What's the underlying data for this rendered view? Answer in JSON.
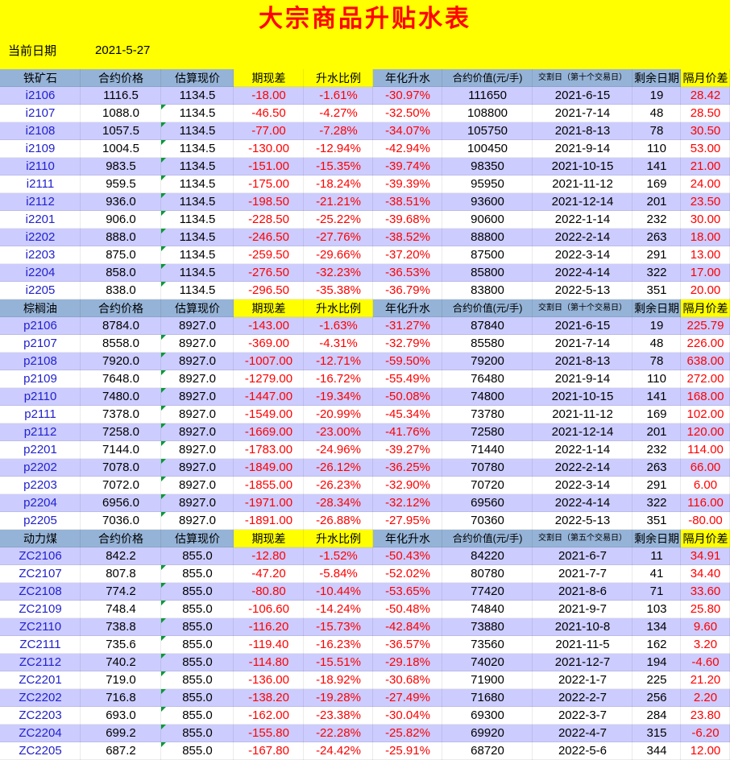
{
  "title": "大宗商品升贴水表",
  "date_label": "当前日期",
  "date_value": "2021-5-27",
  "colors": {
    "banner_bg": "#FFFF00",
    "title_red": "#FF0000",
    "header_blue": "#95B3D7",
    "header_yellow": "#FFFF00",
    "row_alt_bg": "#CCCCFF",
    "row_white_bg": "#FFFFFF",
    "contract_blue": "#2222CC",
    "negative_red": "#FF0000",
    "triangle_green": "#009933"
  },
  "table": {
    "column_keys": [
      "contract",
      "contract-price",
      "estimated-spot-price",
      "basis",
      "premium-ratio",
      "annualized-premium",
      "contract-value",
      "delivery-date",
      "days-remaining",
      "intermonth-spread"
    ],
    "sections": [
      {
        "name": "铁矿石",
        "headers": [
          "铁矿石",
          "合约价格",
          "估算现价",
          "期现差",
          "升水比例",
          "年化升水",
          "合约价值(元/手)",
          "交割日（第十个交易日）",
          "剩余日期",
          "隔月价差"
        ],
        "rows": [
          [
            "i2106",
            "1116.5",
            "1134.5",
            "-18.00",
            "-1.61%",
            "-30.97%",
            "111650",
            "2021-6-15",
            "19",
            "28.42"
          ],
          [
            "i2107",
            "1088.0",
            "1134.5",
            "-46.50",
            "-4.27%",
            "-32.50%",
            "108800",
            "2021-7-14",
            "48",
            "28.50"
          ],
          [
            "i2108",
            "1057.5",
            "1134.5",
            "-77.00",
            "-7.28%",
            "-34.07%",
            "105750",
            "2021-8-13",
            "78",
            "30.50"
          ],
          [
            "i2109",
            "1004.5",
            "1134.5",
            "-130.00",
            "-12.94%",
            "-42.94%",
            "100450",
            "2021-9-14",
            "110",
            "53.00"
          ],
          [
            "i2110",
            "983.5",
            "1134.5",
            "-151.00",
            "-15.35%",
            "-39.74%",
            "98350",
            "2021-10-15",
            "141",
            "21.00"
          ],
          [
            "i2111",
            "959.5",
            "1134.5",
            "-175.00",
            "-18.24%",
            "-39.39%",
            "95950",
            "2021-11-12",
            "169",
            "24.00"
          ],
          [
            "i2112",
            "936.0",
            "1134.5",
            "-198.50",
            "-21.21%",
            "-38.51%",
            "93600",
            "2021-12-14",
            "201",
            "23.50"
          ],
          [
            "i2201",
            "906.0",
            "1134.5",
            "-228.50",
            "-25.22%",
            "-39.68%",
            "90600",
            "2022-1-14",
            "232",
            "30.00"
          ],
          [
            "i2202",
            "888.0",
            "1134.5",
            "-246.50",
            "-27.76%",
            "-38.52%",
            "88800",
            "2022-2-14",
            "263",
            "18.00"
          ],
          [
            "i2203",
            "875.0",
            "1134.5",
            "-259.50",
            "-29.66%",
            "-37.20%",
            "87500",
            "2022-3-14",
            "291",
            "13.00"
          ],
          [
            "i2204",
            "858.0",
            "1134.5",
            "-276.50",
            "-32.23%",
            "-36.53%",
            "85800",
            "2022-4-14",
            "322",
            "17.00"
          ],
          [
            "i2205",
            "838.0",
            "1134.5",
            "-296.50",
            "-35.38%",
            "-36.79%",
            "83800",
            "2022-5-13",
            "351",
            "20.00"
          ]
        ]
      },
      {
        "name": "棕榈油",
        "headers": [
          "棕榈油",
          "合约价格",
          "估算现价",
          "期现差",
          "升水比例",
          "年化升水",
          "合约价值(元/手)",
          "交割日（第十个交易日）",
          "剩余日期",
          "隔月价差"
        ],
        "rows": [
          [
            "p2106",
            "8784.0",
            "8927.0",
            "-143.00",
            "-1.63%",
            "-31.27%",
            "87840",
            "2021-6-15",
            "19",
            "225.79"
          ],
          [
            "p2107",
            "8558.0",
            "8927.0",
            "-369.00",
            "-4.31%",
            "-32.79%",
            "85580",
            "2021-7-14",
            "48",
            "226.00"
          ],
          [
            "p2108",
            "7920.0",
            "8927.0",
            "-1007.00",
            "-12.71%",
            "-59.50%",
            "79200",
            "2021-8-13",
            "78",
            "638.00"
          ],
          [
            "p2109",
            "7648.0",
            "8927.0",
            "-1279.00",
            "-16.72%",
            "-55.49%",
            "76480",
            "2021-9-14",
            "110",
            "272.00"
          ],
          [
            "p2110",
            "7480.0",
            "8927.0",
            "-1447.00",
            "-19.34%",
            "-50.08%",
            "74800",
            "2021-10-15",
            "141",
            "168.00"
          ],
          [
            "p2111",
            "7378.0",
            "8927.0",
            "-1549.00",
            "-20.99%",
            "-45.34%",
            "73780",
            "2021-11-12",
            "169",
            "102.00"
          ],
          [
            "p2112",
            "7258.0",
            "8927.0",
            "-1669.00",
            "-23.00%",
            "-41.76%",
            "72580",
            "2021-12-14",
            "201",
            "120.00"
          ],
          [
            "p2201",
            "7144.0",
            "8927.0",
            "-1783.00",
            "-24.96%",
            "-39.27%",
            "71440",
            "2022-1-14",
            "232",
            "114.00"
          ],
          [
            "p2202",
            "7078.0",
            "8927.0",
            "-1849.00",
            "-26.12%",
            "-36.25%",
            "70780",
            "2022-2-14",
            "263",
            "66.00"
          ],
          [
            "p2203",
            "7072.0",
            "8927.0",
            "-1855.00",
            "-26.23%",
            "-32.90%",
            "70720",
            "2022-3-14",
            "291",
            "6.00"
          ],
          [
            "p2204",
            "6956.0",
            "8927.0",
            "-1971.00",
            "-28.34%",
            "-32.12%",
            "69560",
            "2022-4-14",
            "322",
            "116.00"
          ],
          [
            "p2205",
            "7036.0",
            "8927.0",
            "-1891.00",
            "-26.88%",
            "-27.95%",
            "70360",
            "2022-5-13",
            "351",
            "-80.00"
          ]
        ]
      },
      {
        "name": "动力煤",
        "headers": [
          "动力煤",
          "合约价格",
          "估算现价",
          "期现差",
          "升水比例",
          "年化升水",
          "合约价值(元/手)",
          "交割日（第五个交易日）",
          "剩余日期",
          "隔月价差"
        ],
        "rows": [
          [
            "ZC2106",
            "842.2",
            "855.0",
            "-12.80",
            "-1.52%",
            "-50.43%",
            "84220",
            "2021-6-7",
            "11",
            "34.91"
          ],
          [
            "ZC2107",
            "807.8",
            "855.0",
            "-47.20",
            "-5.84%",
            "-52.02%",
            "80780",
            "2021-7-7",
            "41",
            "34.40"
          ],
          [
            "ZC2108",
            "774.2",
            "855.0",
            "-80.80",
            "-10.44%",
            "-53.65%",
            "77420",
            "2021-8-6",
            "71",
            "33.60"
          ],
          [
            "ZC2109",
            "748.4",
            "855.0",
            "-106.60",
            "-14.24%",
            "-50.48%",
            "74840",
            "2021-9-7",
            "103",
            "25.80"
          ],
          [
            "ZC2110",
            "738.8",
            "855.0",
            "-116.20",
            "-15.73%",
            "-42.84%",
            "73880",
            "2021-10-8",
            "134",
            "9.60"
          ],
          [
            "ZC2111",
            "735.6",
            "855.0",
            "-119.40",
            "-16.23%",
            "-36.57%",
            "73560",
            "2021-11-5",
            "162",
            "3.20"
          ],
          [
            "ZC2112",
            "740.2",
            "855.0",
            "-114.80",
            "-15.51%",
            "-29.18%",
            "74020",
            "2021-12-7",
            "194",
            "-4.60"
          ],
          [
            "ZC2201",
            "719.0",
            "855.0",
            "-136.00",
            "-18.92%",
            "-30.68%",
            "71900",
            "2022-1-7",
            "225",
            "21.20"
          ],
          [
            "ZC2202",
            "716.8",
            "855.0",
            "-138.20",
            "-19.28%",
            "-27.49%",
            "71680",
            "2022-2-7",
            "256",
            "2.20"
          ],
          [
            "ZC2203",
            "693.0",
            "855.0",
            "-162.00",
            "-23.38%",
            "-30.04%",
            "69300",
            "2022-3-7",
            "284",
            "23.80"
          ],
          [
            "ZC2204",
            "699.2",
            "855.0",
            "-155.80",
            "-22.28%",
            "-25.82%",
            "69920",
            "2022-4-7",
            "315",
            "-6.20"
          ],
          [
            "ZC2205",
            "687.2",
            "855.0",
            "-167.80",
            "-24.42%",
            "-25.91%",
            "68720",
            "2022-5-6",
            "344",
            "12.00"
          ]
        ]
      }
    ]
  }
}
